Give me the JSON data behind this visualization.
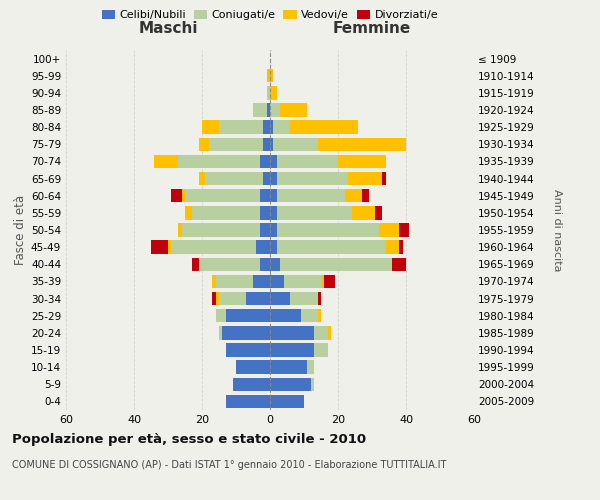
{
  "age_groups": [
    "0-4",
    "5-9",
    "10-14",
    "15-19",
    "20-24",
    "25-29",
    "30-34",
    "35-39",
    "40-44",
    "45-49",
    "50-54",
    "55-59",
    "60-64",
    "65-69",
    "70-74",
    "75-79",
    "80-84",
    "85-89",
    "90-94",
    "95-99",
    "100+"
  ],
  "birth_years": [
    "2005-2009",
    "2000-2004",
    "1995-1999",
    "1990-1994",
    "1985-1989",
    "1980-1984",
    "1975-1979",
    "1970-1974",
    "1965-1969",
    "1960-1964",
    "1955-1959",
    "1950-1954",
    "1945-1949",
    "1940-1944",
    "1935-1939",
    "1930-1934",
    "1925-1929",
    "1920-1924",
    "1915-1919",
    "1910-1914",
    "≤ 1909"
  ],
  "maschi": {
    "celibi": [
      13,
      11,
      10,
      13,
      14,
      13,
      7,
      5,
      3,
      4,
      3,
      3,
      3,
      2,
      3,
      2,
      2,
      1,
      0,
      0,
      0
    ],
    "coniugati": [
      0,
      0,
      0,
      0,
      1,
      3,
      8,
      11,
      18,
      25,
      23,
      20,
      22,
      17,
      24,
      16,
      13,
      4,
      1,
      0,
      0
    ],
    "vedovi": [
      0,
      0,
      0,
      0,
      0,
      0,
      1,
      1,
      0,
      1,
      1,
      2,
      1,
      2,
      7,
      3,
      5,
      0,
      0,
      1,
      0
    ],
    "divorziati": [
      0,
      0,
      0,
      0,
      0,
      0,
      1,
      0,
      2,
      5,
      0,
      0,
      3,
      0,
      0,
      0,
      0,
      0,
      0,
      0,
      0
    ]
  },
  "femmine": {
    "nubili": [
      10,
      12,
      11,
      13,
      13,
      9,
      6,
      4,
      3,
      2,
      2,
      2,
      2,
      2,
      2,
      1,
      1,
      0,
      0,
      0,
      0
    ],
    "coniugate": [
      0,
      1,
      2,
      4,
      4,
      5,
      8,
      11,
      33,
      32,
      30,
      22,
      20,
      21,
      18,
      13,
      5,
      3,
      0,
      0,
      0
    ],
    "vedove": [
      0,
      0,
      0,
      0,
      1,
      1,
      0,
      1,
      0,
      4,
      6,
      7,
      5,
      10,
      14,
      26,
      20,
      8,
      2,
      1,
      0
    ],
    "divorziate": [
      0,
      0,
      0,
      0,
      0,
      0,
      1,
      3,
      4,
      1,
      3,
      2,
      2,
      1,
      0,
      0,
      0,
      0,
      0,
      0,
      0
    ]
  },
  "colors": {
    "celibi": "#4472c4",
    "coniugati": "#b8cfa0",
    "vedovi": "#ffc000",
    "divorziati": "#c0000b"
  },
  "title": "Popolazione per età, sesso e stato civile - 2010",
  "subtitle": "COMUNE DI COSSIGNANO (AP) - Dati ISTAT 1° gennaio 2010 - Elaborazione TUTTITALIA.IT",
  "xlim": 60,
  "bg_color": "#f0f0eb"
}
